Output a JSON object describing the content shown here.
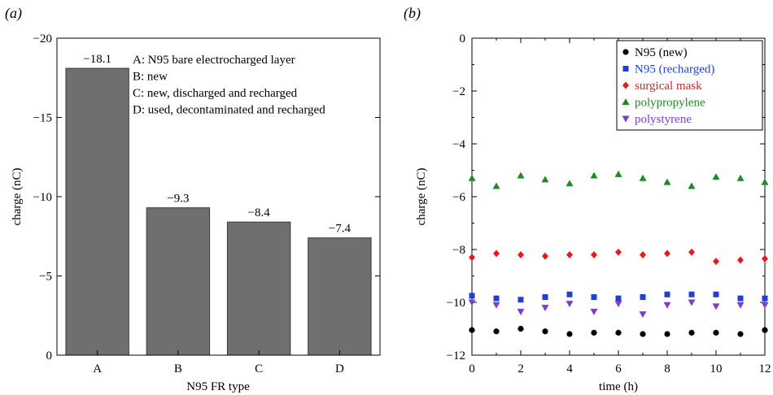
{
  "panels": {
    "a_label": "(a)",
    "b_label": "(b)"
  },
  "chart_data": [
    {
      "type": "bar",
      "panel": "(a)",
      "categories": [
        "A",
        "B",
        "C",
        "D"
      ],
      "values": [
        -18.1,
        -9.3,
        -8.4,
        -7.4
      ],
      "value_labels": [
        "−18.1",
        "−9.3",
        "−8.4",
        "−7.4"
      ],
      "xlabel": "N95 FR type",
      "ylabel": "charge (nC)",
      "ylim": [
        0,
        -20
      ],
      "yticks": [
        0,
        -5,
        -10,
        -15,
        -20
      ],
      "ytick_labels": [
        "0",
        "−5",
        "−10",
        "−15",
        "−20"
      ],
      "bar_color": "#6f6f6f",
      "annotations": [
        "A: N95 bare electrocharged layer",
        "B: new",
        "C: new, discharged and recharged",
        "D: used, decontaminated and recharged"
      ],
      "grid": false
    },
    {
      "type": "scatter",
      "panel": "(b)",
      "xlabel": "time (h)",
      "ylabel": "charge (nC)",
      "xlim": [
        0,
        12
      ],
      "ylim": [
        -12,
        0
      ],
      "xticks": [
        0,
        2,
        4,
        6,
        8,
        10,
        12
      ],
      "xtick_labels": [
        "0",
        "2",
        "4",
        "6",
        "8",
        "10",
        "12"
      ],
      "yticks": [
        0,
        -2,
        -4,
        -6,
        -8,
        -10,
        -12
      ],
      "ytick_labels": [
        "0",
        "−2",
        "−4",
        "−6",
        "−8",
        "−10",
        "−12"
      ],
      "legend_position": "top-right",
      "grid": false,
      "x": [
        0,
        1,
        2,
        3,
        4,
        5,
        6,
        7,
        8,
        9,
        10,
        11,
        12
      ],
      "series": [
        {
          "name": "N95 (new)",
          "marker": "circle",
          "color": "#000000",
          "values": [
            -11.05,
            -11.1,
            -11.0,
            -11.1,
            -11.2,
            -11.15,
            -11.15,
            -11.2,
            -11.2,
            -11.15,
            -11.15,
            -11.2,
            -11.05
          ]
        },
        {
          "name": "N95 (recharged)",
          "marker": "square",
          "color": "#1f3fd6",
          "values": [
            -9.75,
            -9.85,
            -9.9,
            -9.8,
            -9.7,
            -9.8,
            -9.85,
            -9.8,
            -9.7,
            -9.7,
            -9.7,
            -9.85,
            -9.85
          ]
        },
        {
          "name": "surgical mask",
          "marker": "diamond",
          "color": "#e8191c",
          "values": [
            -8.3,
            -8.15,
            -8.2,
            -8.25,
            -8.2,
            -8.2,
            -8.1,
            -8.2,
            -8.15,
            -8.1,
            -8.45,
            -8.4,
            -8.35
          ]
        },
        {
          "name": "polypropylene",
          "marker": "triangle-up",
          "color": "#1d8b1d",
          "values": [
            -5.3,
            -5.6,
            -5.2,
            -5.35,
            -5.5,
            -5.2,
            -5.15,
            -5.3,
            -5.45,
            -5.6,
            -5.25,
            -5.3,
            -5.45
          ]
        },
        {
          "name": "polystyrene",
          "marker": "triangle-down",
          "color": "#7a3fd1",
          "values": [
            -10.0,
            -10.1,
            -10.35,
            -10.2,
            -10.05,
            -10.35,
            -10.05,
            -10.45,
            -10.1,
            -10.0,
            -10.15,
            -10.1,
            -10.1
          ]
        }
      ]
    }
  ]
}
